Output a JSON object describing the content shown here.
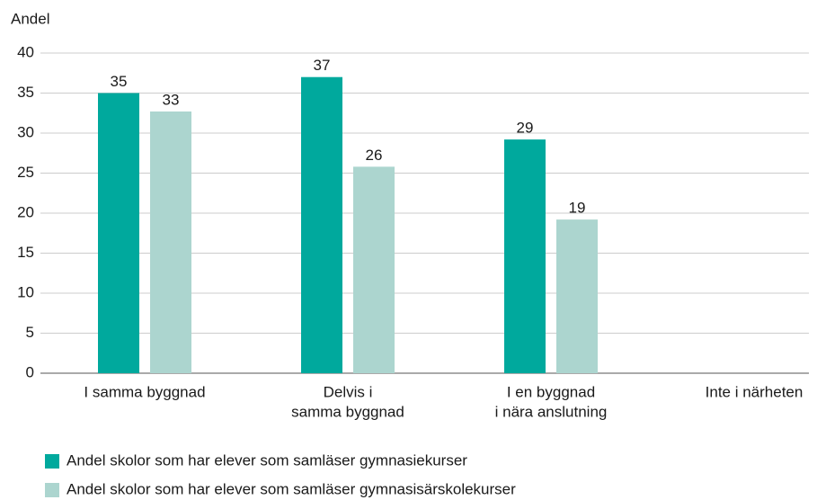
{
  "chart_data": {
    "type": "bar",
    "ylabel": "Andel",
    "categories": [
      [
        "I samma byggnad"
      ],
      [
        "Delvis i",
        "samma byggnad"
      ],
      [
        "I en byggnad",
        "i nära anslutning"
      ],
      [
        "Inte i närheten"
      ]
    ],
    "series": [
      {
        "name": "Andel skolor som har elever som samläser gymnasiekurser",
        "color": "#00a99d",
        "values": [
          35,
          37,
          29.2,
          null
        ],
        "value_labels": [
          "35",
          "37",
          "29",
          null
        ]
      },
      {
        "name": "Andel skolor som har elever som samläser gymnasisärskolekurser",
        "color": "#acd5cf",
        "values": [
          32.7,
          25.8,
          19.2,
          null
        ],
        "value_labels": [
          "33",
          "26",
          "19",
          null
        ]
      }
    ],
    "ylim": [
      0,
      40
    ],
    "yticks": [
      0,
      5,
      10,
      15,
      20,
      25,
      30,
      35,
      40
    ],
    "grid": true
  }
}
